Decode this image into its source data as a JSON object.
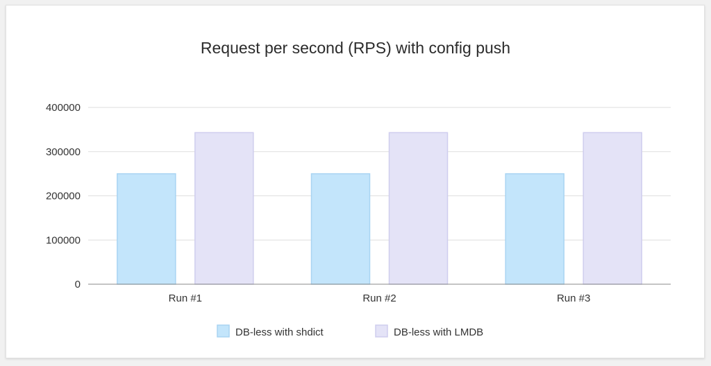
{
  "chart_data": {
    "type": "bar",
    "title": "Request per second (RPS) with config push",
    "categories": [
      "Run #1",
      "Run #2",
      "Run #3"
    ],
    "series": [
      {
        "name": "DB-less with shdict",
        "values": [
          250000,
          250000,
          250000
        ],
        "fill": "#c3e5fb",
        "stroke": "#a9d4f2"
      },
      {
        "name": "DB-less with LMDB",
        "values": [
          343000,
          343000,
          343000
        ],
        "fill": "#e4e3f7",
        "stroke": "#cfcdee"
      }
    ],
    "y_ticks": [
      0,
      100000,
      200000,
      300000,
      400000
    ],
    "y_tick_labels": [
      "0",
      "100000",
      "200000",
      "300000",
      "400000"
    ],
    "ylim": [
      0,
      400000
    ],
    "xlabel": "",
    "ylabel": "",
    "grid": true,
    "legend_position": "bottom"
  }
}
